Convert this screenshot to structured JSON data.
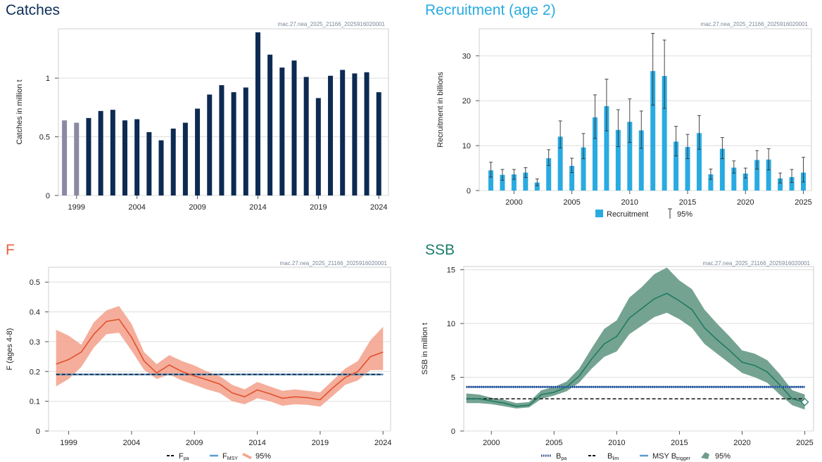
{
  "chart_data": [
    {
      "id": "catches",
      "type": "bar",
      "title": "Catches",
      "code": "mac.27.nea_2025_21166_2025916020001",
      "ylabel": "Catches in million t",
      "xlabel": "",
      "ylim": [
        0,
        1.42
      ],
      "yticks": [
        0,
        0.5,
        1
      ],
      "ytick_labels": [
        "0",
        "0.5",
        "1"
      ],
      "xticks": [
        1999,
        2004,
        2009,
        2014,
        2019,
        2024
      ],
      "grid": true,
      "colors": {
        "title": "#0c2e57",
        "bar": "#0c2a52",
        "bar_early": "#8a8aa2"
      },
      "years": [
        1998,
        1999,
        2000,
        2001,
        2002,
        2003,
        2004,
        2005,
        2006,
        2007,
        2008,
        2009,
        2010,
        2011,
        2012,
        2013,
        2014,
        2015,
        2016,
        2017,
        2018,
        2019,
        2020,
        2021,
        2022,
        2023,
        2024
      ],
      "values": [
        0.64,
        0.62,
        0.66,
        0.72,
        0.73,
        0.64,
        0.65,
        0.54,
        0.47,
        0.57,
        0.62,
        0.74,
        0.86,
        0.94,
        0.88,
        0.92,
        1.39,
        1.2,
        1.09,
        1.15,
        1.01,
        0.83,
        1.02,
        1.07,
        1.04,
        1.05,
        0.88
      ],
      "early_years": [
        1998,
        1999
      ]
    },
    {
      "id": "recruitment",
      "type": "bar",
      "title": "Recruitment (age 2)",
      "code": "mac.27.nea_2025_21166_2025916020001",
      "ylabel": "Recruitment in billions",
      "xlabel": "",
      "ylim": [
        0,
        36
      ],
      "yticks": [
        0,
        10,
        20,
        30
      ],
      "ytick_labels": [
        "0",
        "10",
        "20",
        "30"
      ],
      "xticks": [
        2000,
        2005,
        2010,
        2015,
        2020,
        2025
      ],
      "grid": true,
      "colors": {
        "title": "#29abe2",
        "bar": "#29abe2",
        "err": "#333333"
      },
      "legend": {
        "position": "bottom",
        "bar_label": "Recruitment",
        "ci_label": "95%"
      },
      "years": [
        1998,
        1999,
        2000,
        2001,
        2002,
        2003,
        2004,
        2005,
        2006,
        2007,
        2008,
        2009,
        2010,
        2011,
        2012,
        2013,
        2014,
        2015,
        2016,
        2017,
        2018,
        2019,
        2020,
        2021,
        2022,
        2023,
        2024,
        2025
      ],
      "values": [
        4.5,
        3.5,
        3.6,
        4.0,
        1.8,
        7.2,
        12.0,
        5.5,
        9.6,
        16.3,
        18.8,
        13.5,
        15.3,
        13.4,
        26.6,
        25.5,
        10.9,
        9.7,
        12.8,
        3.6,
        9.3,
        5.1,
        3.8,
        6.8,
        6.9,
        2.7,
        3.0,
        4.0
      ],
      "low": [
        3.0,
        2.3,
        2.5,
        2.9,
        1.1,
        5.6,
        9.5,
        4.0,
        7.1,
        11.6,
        13.3,
        9.8,
        10.7,
        9.4,
        19.0,
        18.3,
        7.7,
        7.1,
        9.2,
        2.5,
        7.1,
        3.9,
        2.8,
        4.8,
        4.6,
        1.7,
        1.8,
        1.9
      ],
      "high": [
        6.3,
        4.7,
        4.7,
        5.1,
        2.6,
        9.1,
        15.5,
        7.2,
        12.7,
        21.3,
        24.8,
        18.0,
        20.4,
        17.7,
        35.0,
        33.5,
        14.3,
        12.5,
        16.7,
        4.8,
        11.8,
        6.6,
        5.0,
        8.9,
        9.3,
        3.9,
        4.7,
        7.4
      ]
    },
    {
      "id": "f",
      "type": "line",
      "title": "F",
      "code": "mac.27.nea_2025_21166_2025916020001",
      "ylabel": "F (ages 4-8)",
      "xlabel": "",
      "ylim": [
        0,
        0.55
      ],
      "yticks": [
        0,
        0.1,
        0.2,
        0.3,
        0.4,
        0.5
      ],
      "ytick_labels": [
        "0",
        "0.1",
        "0.2",
        "0.3",
        "0.4",
        "0.5"
      ],
      "xticks": [
        1999,
        2004,
        2009,
        2014,
        2019,
        2024
      ],
      "grid": true,
      "colors": {
        "title": "#e8603c",
        "line": "#e0512e",
        "band": "#f4a590",
        "fpa": "#111111",
        "fmsy": "#5b9bd5"
      },
      "legend": {
        "position": "bottom",
        "fpa": "F",
        "fpa_sub": "pa",
        "fmsy": "F",
        "fmsy_sub": "MSY",
        "ci": "95%"
      },
      "years": [
        1998,
        1999,
        2000,
        2001,
        2002,
        2003,
        2004,
        2005,
        2006,
        2007,
        2008,
        2009,
        2010,
        2011,
        2012,
        2013,
        2014,
        2015,
        2016,
        2017,
        2018,
        2019,
        2020,
        2021,
        2022,
        2023,
        2024
      ],
      "values": [
        0.225,
        0.24,
        0.265,
        0.325,
        0.368,
        0.375,
        0.315,
        0.235,
        0.195,
        0.222,
        0.2,
        0.185,
        0.172,
        0.158,
        0.128,
        0.115,
        0.138,
        0.125,
        0.11,
        0.115,
        0.112,
        0.105,
        0.145,
        0.18,
        0.2,
        0.25,
        0.265
      ],
      "low": [
        0.15,
        0.175,
        0.215,
        0.28,
        0.325,
        0.33,
        0.27,
        0.205,
        0.175,
        0.19,
        0.17,
        0.155,
        0.14,
        0.128,
        0.1,
        0.09,
        0.11,
        0.1,
        0.085,
        0.09,
        0.088,
        0.082,
        0.118,
        0.155,
        0.17,
        0.205,
        0.205
      ],
      "high": [
        0.34,
        0.32,
        0.29,
        0.365,
        0.405,
        0.42,
        0.36,
        0.265,
        0.225,
        0.255,
        0.235,
        0.22,
        0.2,
        0.185,
        0.155,
        0.14,
        0.165,
        0.15,
        0.135,
        0.14,
        0.135,
        0.13,
        0.17,
        0.21,
        0.235,
        0.305,
        0.35
      ],
      "fpa": 0.19,
      "fmsy": 0.19
    },
    {
      "id": "ssb",
      "type": "line",
      "title": "SSB",
      "code": "mac.27.nea_2025_21166_2025916020001",
      "ylabel": "SSB in million t",
      "xlabel": "",
      "ylim": [
        0,
        15.3
      ],
      "yticks": [
        0,
        5,
        10,
        15
      ],
      "ytick_labels": [
        "0",
        "5",
        "10",
        "15"
      ],
      "xticks": [
        2000,
        2005,
        2010,
        2015,
        2020,
        2025
      ],
      "grid": true,
      "colors": {
        "title": "#1a7a6a",
        "line": "#1e7a66",
        "band": "#6e9e8b",
        "bpa": "#1f3a80",
        "blim": "#111111",
        "btrigger": "#5b9bd5"
      },
      "legend": {
        "position": "bottom",
        "bpa": "B",
        "bpa_sub": "pa",
        "blim": "B",
        "blim_sub": "lim",
        "btrigger": "MSY B",
        "btrigger_sub": "trigger",
        "ci": "95%"
      },
      "years": [
        1998,
        1999,
        2000,
        2001,
        2002,
        2003,
        2004,
        2005,
        2006,
        2007,
        2008,
        2009,
        2010,
        2011,
        2012,
        2013,
        2014,
        2015,
        2016,
        2017,
        2018,
        2019,
        2020,
        2021,
        2022,
        2023,
        2024,
        2025
      ],
      "values": [
        3.0,
        3.0,
        2.8,
        2.6,
        2.3,
        2.4,
        3.4,
        3.6,
        4.1,
        5.1,
        6.7,
        8.1,
        8.8,
        10.5,
        11.4,
        12.3,
        12.8,
        12.1,
        11.3,
        9.6,
        8.5,
        7.5,
        6.4,
        6.1,
        5.5,
        4.3,
        3.0,
        2.7
      ],
      "low": [
        2.6,
        2.6,
        2.5,
        2.3,
        2.1,
        2.2,
        3.0,
        3.3,
        3.7,
        4.5,
        5.8,
        6.9,
        7.4,
        9.0,
        9.8,
        10.6,
        11.0,
        10.4,
        9.6,
        8.1,
        7.2,
        6.3,
        5.4,
        5.0,
        4.5,
        3.4,
        2.4,
        2.0
      ],
      "high": [
        3.5,
        3.4,
        3.1,
        2.9,
        2.6,
        2.7,
        3.8,
        4.1,
        4.6,
        5.8,
        7.7,
        9.5,
        10.3,
        12.4,
        13.4,
        14.6,
        15.2,
        14.0,
        13.2,
        11.3,
        10.0,
        8.8,
        7.5,
        7.2,
        6.6,
        5.3,
        3.8,
        3.4
      ],
      "bpa": 4.1,
      "blim": 3.0,
      "btrigger": 4.1
    }
  ]
}
